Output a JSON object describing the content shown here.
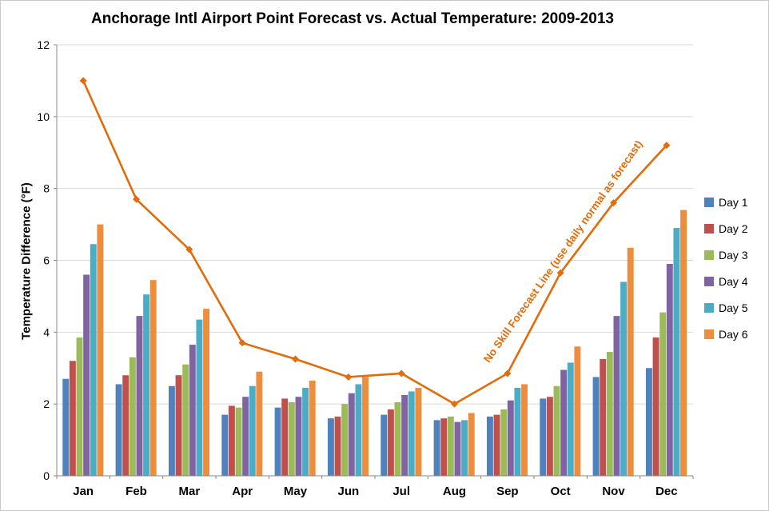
{
  "chart_data": {
    "type": "bar",
    "title": "Anchorage Intl Airport Point Forecast vs. Actual Temperature: 2009-2013",
    "ylabel": "Temperature Difference (°F)",
    "xlabel": "",
    "ylim": [
      0,
      12
    ],
    "ytick_step": 2,
    "grid": true,
    "legend_position": "right",
    "categories": [
      "Jan",
      "Feb",
      "Mar",
      "Apr",
      "May",
      "Jun",
      "Jul",
      "Aug",
      "Sep",
      "Oct",
      "Nov",
      "Dec"
    ],
    "series": [
      {
        "name": "Day 1",
        "color": "#4F81BD",
        "values": [
          2.7,
          2.55,
          2.5,
          1.7,
          1.9,
          1.6,
          1.7,
          1.55,
          1.65,
          2.15,
          2.75,
          3.0
        ]
      },
      {
        "name": "Day 2",
        "color": "#C0504D",
        "values": [
          3.2,
          2.8,
          2.8,
          1.95,
          2.15,
          1.65,
          1.85,
          1.6,
          1.7,
          2.2,
          3.25,
          3.85
        ]
      },
      {
        "name": "Day 3",
        "color": "#9BBB59",
        "values": [
          3.85,
          3.3,
          3.1,
          1.9,
          2.05,
          2.0,
          2.05,
          1.65,
          1.85,
          2.5,
          3.45,
          4.55
        ]
      },
      {
        "name": "Day 4",
        "color": "#8064A2",
        "values": [
          5.6,
          4.45,
          3.65,
          2.2,
          2.2,
          2.3,
          2.25,
          1.5,
          2.1,
          2.95,
          4.45,
          5.9
        ]
      },
      {
        "name": "Day 5",
        "color": "#4BACC6",
        "values": [
          6.45,
          5.05,
          4.35,
          2.5,
          2.45,
          2.55,
          2.35,
          1.55,
          2.45,
          3.15,
          5.4,
          6.9
        ]
      },
      {
        "name": "Day 6",
        "color": "#ED8E3E",
        "values": [
          7.0,
          5.45,
          4.65,
          2.9,
          2.65,
          2.75,
          2.45,
          1.75,
          2.55,
          3.6,
          6.35,
          7.4
        ]
      }
    ],
    "line": {
      "name": "No Skill Forecast Line",
      "color": "#E26B0A",
      "values": [
        11.0,
        7.7,
        6.3,
        3.7,
        3.25,
        2.75,
        2.85,
        2.0,
        2.85,
        5.65,
        7.6,
        9.2
      ]
    },
    "annotation": {
      "text": "No Skill Forecast Line (use daily normal as forecast)"
    }
  }
}
